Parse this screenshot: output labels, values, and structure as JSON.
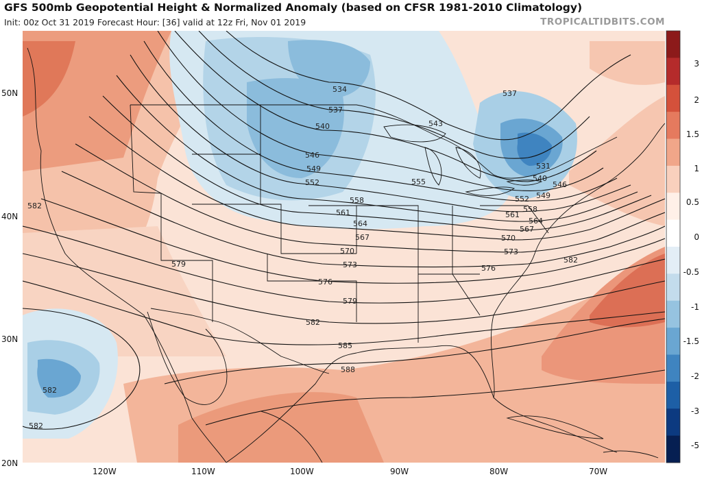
{
  "header": {
    "title": "GFS 500mb Geopotential Height & Normalized Anomaly (based on CFSR 1981-2010 Climatology)",
    "subtitle": "Init: 00z Oct 31 2019   Forecast Hour: [36]   valid at 12z Fri, Nov 01 2019",
    "brand": "TROPICALTIDBITS.COM"
  },
  "map": {
    "lat_labels": [
      "50N",
      "40N",
      "30N",
      "20N"
    ],
    "lon_labels": [
      "120W",
      "110W",
      "100W",
      "90W",
      "80W",
      "70W"
    ],
    "contour_labels": [
      "534",
      "537",
      "540",
      "543",
      "546",
      "549",
      "552",
      "555",
      "558",
      "561",
      "564",
      "567",
      "570",
      "573",
      "576",
      "579",
      "582",
      "585",
      "588",
      "537",
      "531",
      "540",
      "546",
      "549",
      "552",
      "558",
      "561",
      "564",
      "567",
      "570",
      "573",
      "576",
      "582",
      "582",
      "579",
      "582"
    ]
  },
  "colorbar": {
    "labels": [
      "3",
      "2",
      "1.5",
      "1",
      "0.5",
      "0",
      "-0.5",
      "-1",
      "-1.5",
      "-2",
      "-3",
      "-5"
    ],
    "colors": [
      "#8c1a1a",
      "#b52b2b",
      "#d4513b",
      "#e57a5e",
      "#f1a689",
      "#f9d0bd",
      "#fff0e8",
      "#ffffff",
      "#e3eef6",
      "#c3dcec",
      "#96c3e0",
      "#6aa6d2",
      "#3f84c0",
      "#1d5fa6",
      "#0c3a80",
      "#061f52"
    ]
  }
}
